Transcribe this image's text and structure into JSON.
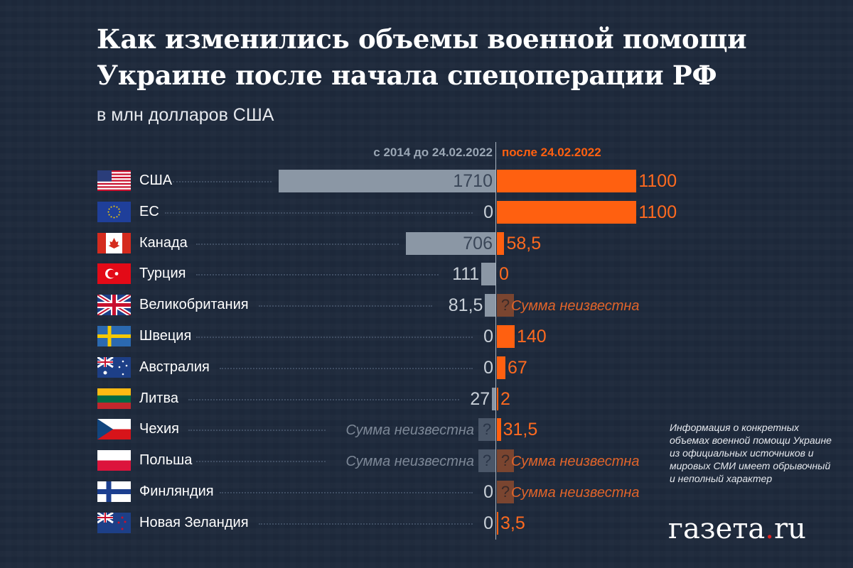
{
  "title_line1": "Как изменились объемы военной помощи",
  "title_line2": "Украине после начала спецоперации РФ",
  "subtitle": "в млн долларов США",
  "note": "Информация о конкретных объемах военной помощи Украине из официальных источников и мировых СМИ имеет обрывочный и неполный характер",
  "logo": {
    "text": "газета",
    "dot": ".",
    "suffix": "ru"
  },
  "chart_data": {
    "type": "bar",
    "title": "Как изменились объемы военной помощи Украине после начала спецоперации РФ",
    "unit": "в млн долларов США",
    "unknown_label": "Сумма неизвестна",
    "unknown_mark": "?",
    "series": [
      {
        "name": "с 2014 до 24.02.2022",
        "color": "#8b97a5",
        "values": [
          1710,
          0,
          706,
          111,
          81.5,
          0,
          0,
          27,
          null,
          null,
          0,
          0
        ],
        "labels": [
          "1710",
          "0",
          "706",
          "111",
          "81,5",
          "0",
          "0",
          "27",
          "Сумма неизвестна",
          "Сумма неизвестна",
          "0",
          "0"
        ]
      },
      {
        "name": "после 24.02.2022",
        "color": "#ff6010",
        "values": [
          1100,
          1100,
          58.5,
          0,
          null,
          140,
          67,
          2,
          31.5,
          null,
          null,
          3.5
        ],
        "labels": [
          "1100",
          "1100",
          "58,5",
          "0",
          "Сумма неизвестна",
          "140",
          "67",
          "2",
          "31,5",
          "Сумма неизвестна",
          "Сумма неизвестна",
          "3,5"
        ]
      }
    ],
    "categories": [
      "США",
      "ЕС",
      "Канада",
      "Турция",
      "Великобритания",
      "Швеция",
      "Австралия",
      "Литва",
      "Чехия",
      "Польша",
      "Финляндия",
      "Новая Зеландия"
    ],
    "flags": [
      "us",
      "eu",
      "ca",
      "tr",
      "gb",
      "se",
      "au",
      "lt",
      "cz",
      "pl",
      "fi",
      "nz"
    ]
  }
}
